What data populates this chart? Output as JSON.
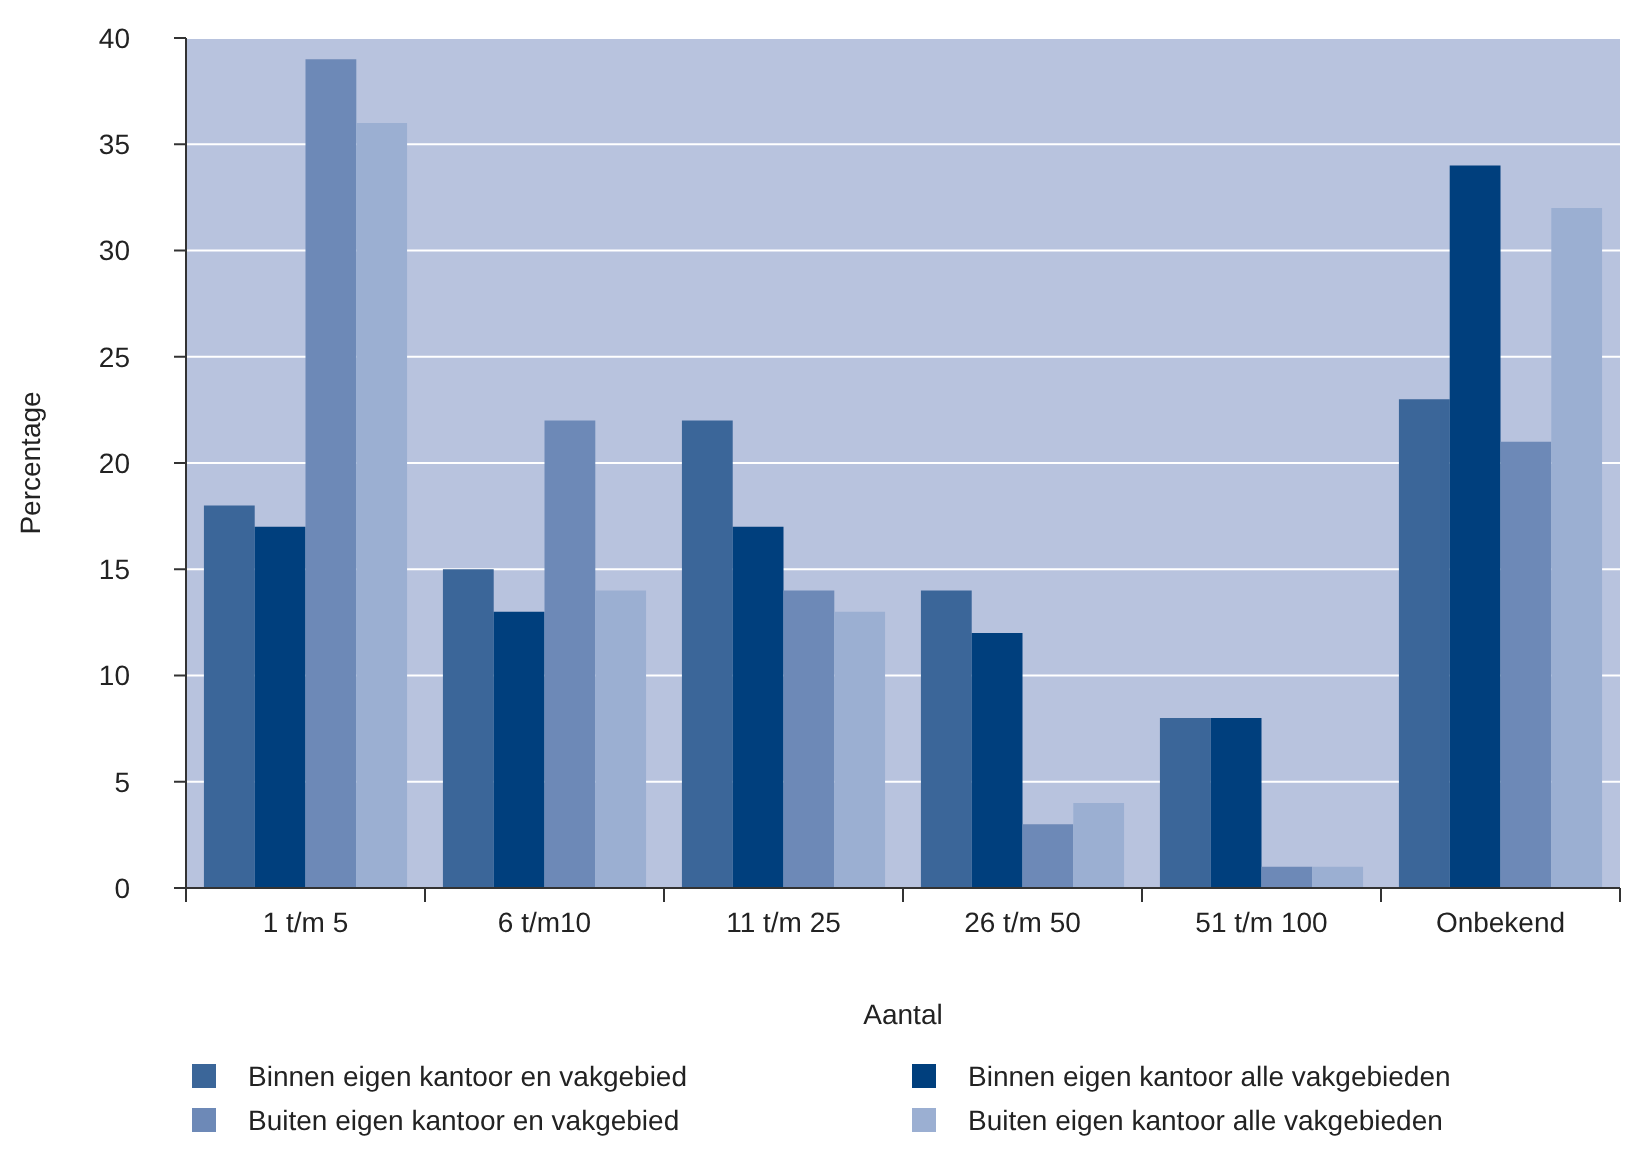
{
  "chart_data": {
    "type": "bar",
    "xlabel": "Aantal",
    "ylabel": "Percentage",
    "categories": [
      "1 t/m 5",
      "6 t/m10",
      "11 t/m 25",
      "26 t/m 50",
      "51 t/m 100",
      "Onbekend"
    ],
    "series": [
      {
        "name": "Binnen eigen kantoor en vakgebied",
        "color": "#3b6699",
        "values": [
          18,
          15,
          22,
          14,
          8,
          23
        ]
      },
      {
        "name": "Binnen eigen kantoor alle vakgebieden",
        "color": "#003f7d",
        "values": [
          17,
          13,
          17,
          12,
          8,
          34
        ]
      },
      {
        "name": "Buiten eigen kantoor en vakgebied",
        "color": "#6d89b7",
        "values": [
          39,
          22,
          14,
          3,
          1,
          21
        ]
      },
      {
        "name": "Buiten eigen kantoor alle vakgebieden",
        "color": "#9bafd2",
        "values": [
          36,
          14,
          13,
          4,
          1,
          32
        ]
      }
    ],
    "ylim": [
      0,
      40
    ],
    "yticks": [
      0,
      5,
      10,
      15,
      20,
      25,
      30,
      35,
      40
    ],
    "grid": "y",
    "legend": "bottom"
  }
}
